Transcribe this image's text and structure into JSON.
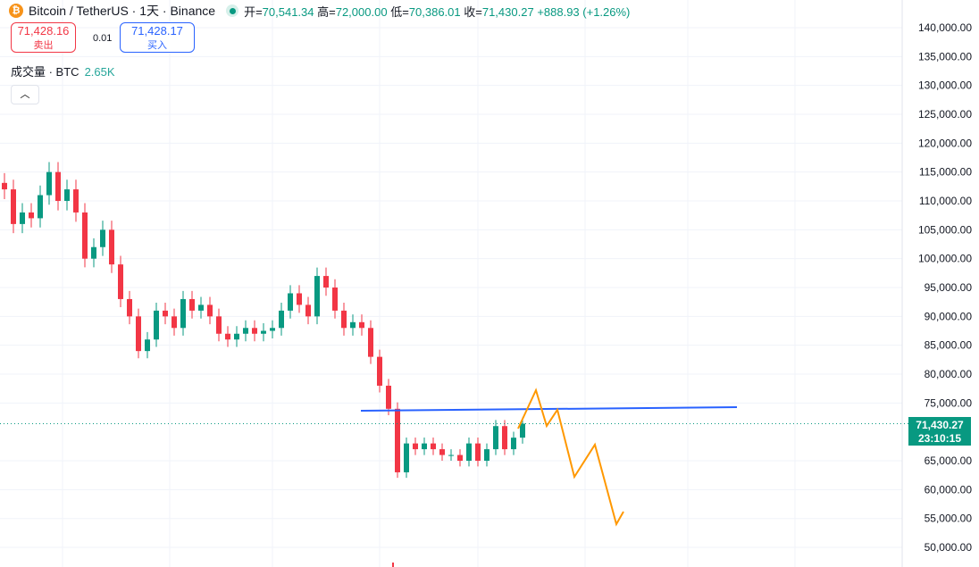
{
  "header": {
    "symbol": "Bitcoin / TetherUS · 1天 · Binance",
    "coin_icon": "bitcoin-icon",
    "open_label": "开=",
    "open": "70,541.34",
    "high_label": "高=",
    "high": "72,000.00",
    "low_label": "低=",
    "low": "70,386.01",
    "close_label": "收=",
    "close": "71,430.27",
    "change": "+888.93 (+1.26%)"
  },
  "trade": {
    "sell_price": "71,428.16",
    "sell_label": "卖出",
    "spread": "0.01",
    "buy_price": "71,428.17",
    "buy_label": "买入"
  },
  "volume": {
    "label": "成交量 · BTC",
    "value": "2.65K"
  },
  "collapse_icon": "chevron-up-icon",
  "colors": {
    "up": "#089981",
    "down": "#f23645",
    "trendline": "#2962ff",
    "projection": "#ff9800",
    "grid": "#f0f3fa"
  },
  "chart_data": {
    "type": "candlestick",
    "ylim": [
      50000,
      140000
    ],
    "y_ticks": [
      "140,000.00",
      "135,000.00",
      "130,000.00",
      "125,000.00",
      "120,000.00",
      "115,000.00",
      "110,000.00",
      "105,000.00",
      "100,000.00",
      "95,000.00",
      "90,000.00",
      "85,000.00",
      "80,000.00",
      "75,000.00",
      "65,000.00",
      "60,000.00",
      "55,000.00",
      "50,000.00"
    ],
    "closes": [
      112000,
      106000,
      108000,
      107000,
      111000,
      115000,
      110000,
      112000,
      108000,
      100000,
      102000,
      105000,
      99000,
      93000,
      90000,
      84000,
      86000,
      91000,
      90000,
      88000,
      93000,
      91000,
      92000,
      90000,
      87000,
      86000,
      87000,
      88000,
      87000,
      87500,
      88000,
      91000,
      94000,
      92000,
      90000,
      97000,
      95000,
      91000,
      88000,
      89000,
      88000,
      83000,
      78000,
      74000,
      63000,
      68000,
      67000,
      68000,
      67000,
      66000,
      66000,
      65000,
      68000,
      65000,
      67000,
      71000,
      67000,
      69000,
      71430.27
    ],
    "last_price": "71,430.27",
    "countdown": "23:10:15",
    "drawings": {
      "trendline": [
        [
          39.9,
          73660
        ],
        [
          82.0,
          74280
        ]
      ],
      "projection": [
        [
          57.5,
          70570
        ],
        [
          59.5,
          77220
        ],
        [
          60.7,
          71030
        ],
        [
          61.9,
          73820
        ],
        [
          63.8,
          62220
        ],
        [
          66.1,
          67790
        ],
        [
          68.5,
          54020
        ],
        [
          69.3,
          56190
        ]
      ]
    }
  }
}
